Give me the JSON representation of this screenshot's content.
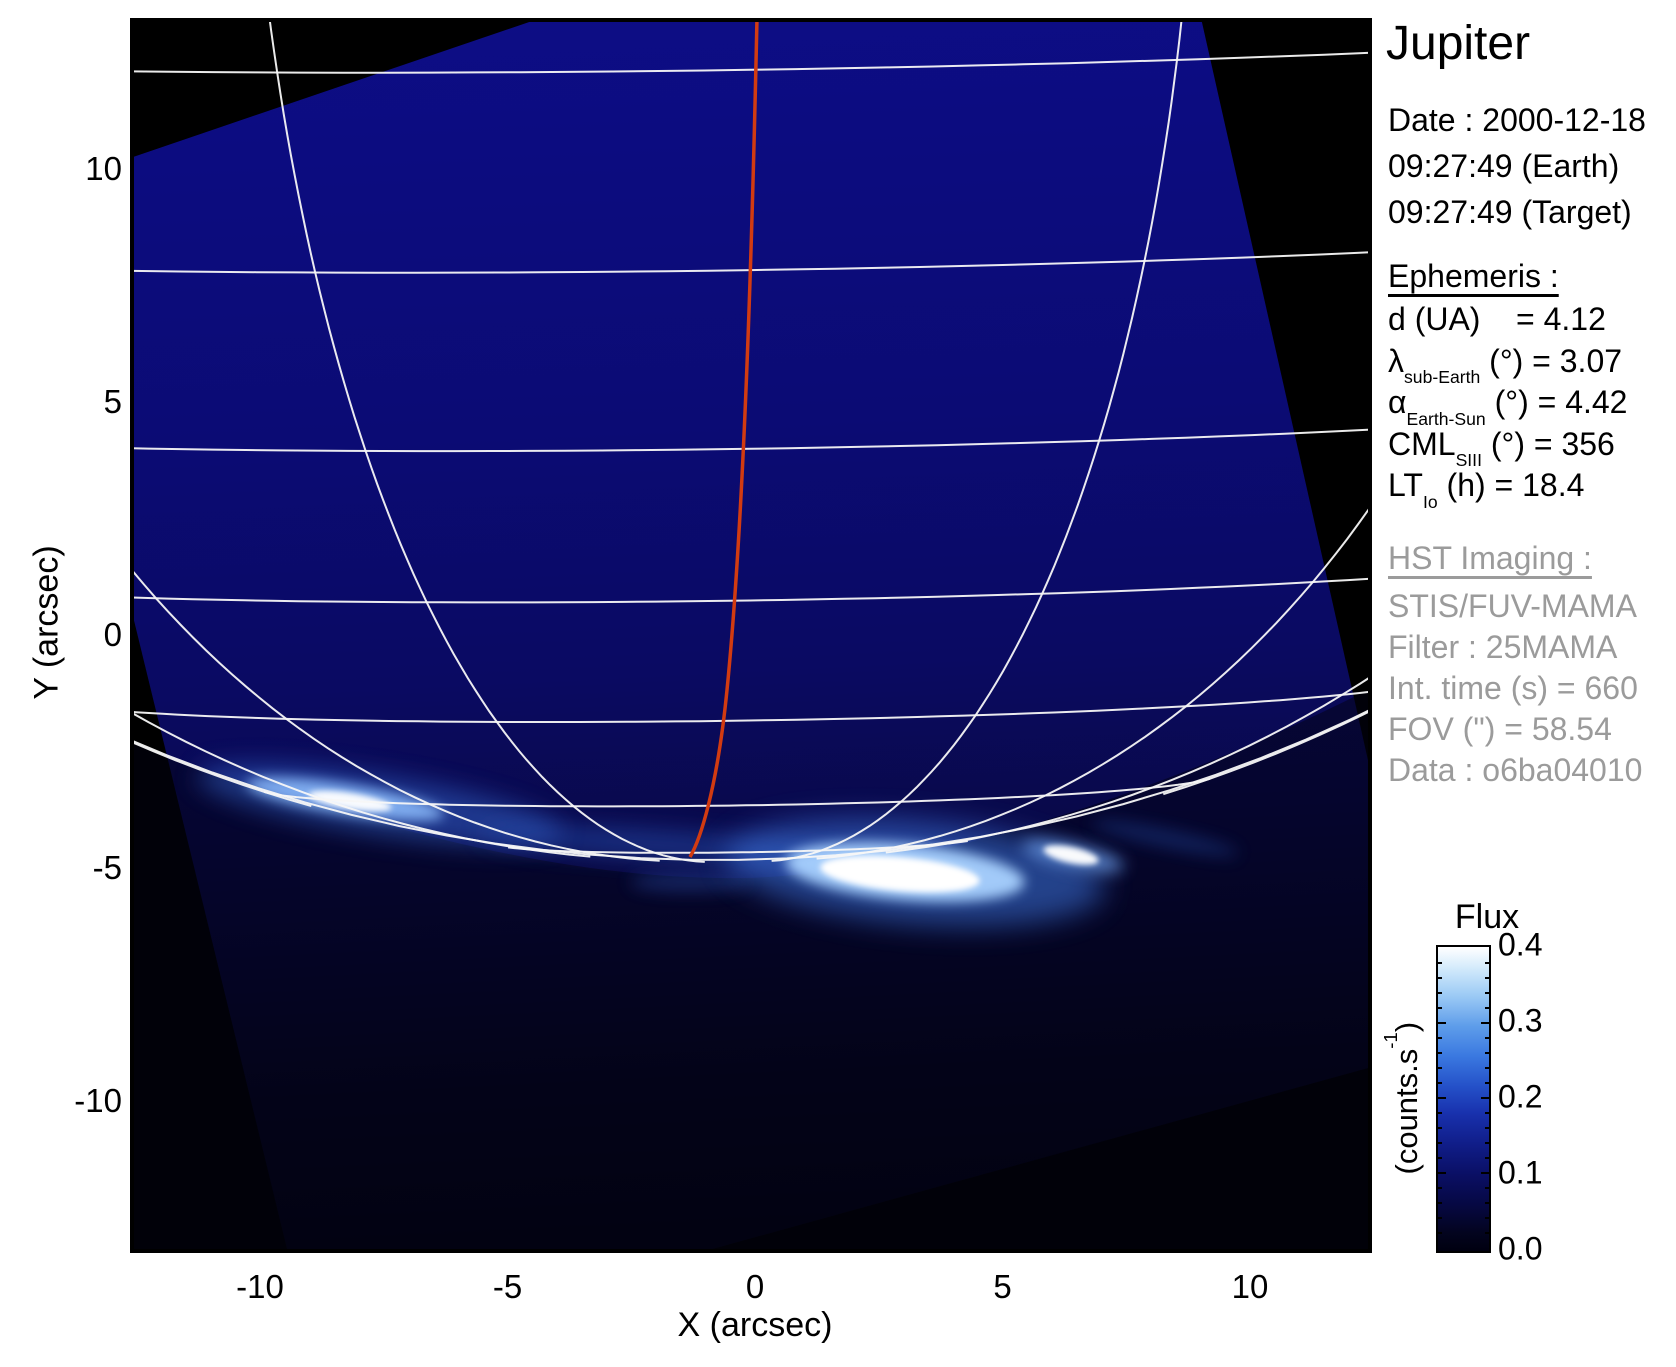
{
  "title": "Jupiter",
  "observation": {
    "date_line": "Date : 2000-12-18",
    "time_earth": "09:27:49 (Earth)",
    "time_target": "09:27:49 (Target)"
  },
  "ephemeris": {
    "heading": "Ephemeris :",
    "items": [
      {
        "pre": "d (UA)",
        "sub": "",
        "post": "    = 4.12"
      },
      {
        "pre": "λ",
        "sub": "sub-Earth",
        "post": " (°) = 3.07"
      },
      {
        "pre": "α",
        "sub": "Earth-Sun",
        "post": " (°) = 4.42"
      },
      {
        "pre": "CML",
        "sub": "SIII",
        "post": " (°) = 356"
      },
      {
        "pre": "LT",
        "sub": "Io",
        "post": " (h) = 18.4"
      }
    ]
  },
  "hst": {
    "heading": "HST Imaging :",
    "lines": [
      "STIS/FUV-MAMA",
      "Filter : 25MAMA",
      "Int. time (s) = 660",
      "FOV (\") = 58.54",
      "Data : o6ba04010"
    ]
  },
  "colorbar": {
    "title": "Flux",
    "unit_pre": "(counts.s",
    "unit_sup": "-1",
    "unit_post": ")",
    "tick_labels": [
      "0.4",
      "0.3",
      "0.2",
      "0.1",
      "0.0"
    ]
  },
  "axes": {
    "x_label": "X (arcsec)",
    "y_label": "Y (arcsec)",
    "x_ticks": [
      "-10",
      "-5",
      "0",
      "5",
      "10"
    ],
    "y_ticks": [
      "10",
      "5",
      "0",
      "-5",
      "-10"
    ]
  },
  "chart_data": {
    "type": "heatmap",
    "title": "Jupiter",
    "xlabel": "X (arcsec)",
    "ylabel": "Y (arcsec)",
    "xlim": [
      -12.6,
      12.5
    ],
    "ylim": [
      -13.3,
      13.2
    ],
    "x_ticks": [
      -10,
      -5,
      0,
      5,
      10
    ],
    "y_ticks": [
      10,
      5,
      0,
      -5,
      -10
    ],
    "colormap": {
      "label": "Flux",
      "unit": "counts.s-1",
      "range": [
        0.0,
        0.4
      ],
      "ticks": [
        0.0,
        0.1,
        0.2,
        0.3,
        0.4
      ],
      "ramp": [
        "#000010",
        "#0a0f64",
        "#2450c8",
        "#5e9dea",
        "#ffffff"
      ]
    },
    "content": "HST STIS far-UV image of Jupiter southern aurora: dark-blue rotated detector field of view on black sky, white planetary latitude/longitude graticule converging to the pole near the bottom limb, bright auroral emission patches along the limb, red meridian line from top of frame to the limb",
    "aurora_features": [
      {
        "name": "left-limb-arc-streak",
        "x_arcsec": -8.2,
        "y_arcsec": -3.6,
        "brightness": "bright white core with blue halo"
      },
      {
        "name": "faint-connecting-band",
        "x_arcsec": -2.0,
        "y_arcsec": -4.5,
        "brightness": "faint blue"
      },
      {
        "name": "main-auroral-patch",
        "x_arcsec": 3.0,
        "y_arcsec": -5.1,
        "brightness": "saturated white"
      },
      {
        "name": "secondary-spot",
        "x_arcsec": 6.4,
        "y_arcsec": -4.7,
        "brightness": "bright white"
      }
    ],
    "red_meridian": {
      "top": {
        "x_arcsec": 0.05,
        "y_arcsec": 13.2
      },
      "bottom": {
        "x_arcsec": -1.3,
        "y_arcsec": -4.8
      }
    },
    "graticule": {
      "latitude_step_deg": 10,
      "longitude_step_deg": 20,
      "visible_pole": "near bottom limb"
    },
    "fov_quad_rotation_deg": -13
  }
}
